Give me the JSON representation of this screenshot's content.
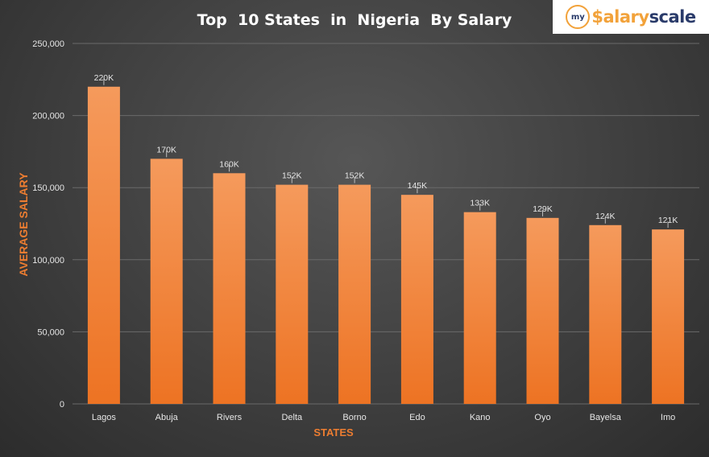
{
  "logo": {
    "mark": "my",
    "word_part1": "$alary",
    "word_part2": "scale"
  },
  "colors": {
    "bar_top": "#f59a5c",
    "bar_bottom": "#ed7323",
    "axis_label": "#ed7d31",
    "text": "#e6e6e6",
    "title": "#ffffff",
    "grid": "#6a6a6a"
  },
  "chart_data": {
    "type": "bar",
    "title": "Top  10 States  in  Nigeria  By Salary",
    "xlabel": "STATES",
    "ylabel": "AVERAGE SALARY",
    "categories": [
      "Lagos",
      "Abuja",
      "Rivers",
      "Delta",
      "Borno",
      "Edo",
      "Kano",
      "Oyo",
      "Bayelsa",
      "Imo"
    ],
    "values": [
      220000,
      170000,
      160000,
      152000,
      152000,
      145000,
      133000,
      129000,
      124000,
      121000
    ],
    "data_labels": [
      "220K",
      "170K",
      "160K",
      "152K",
      "152K",
      "145K",
      "133K",
      "129K",
      "124K",
      "121K"
    ],
    "ylim": [
      0,
      250000
    ],
    "yticks": [
      0,
      50000,
      100000,
      150000,
      200000,
      250000
    ],
    "ytick_labels": [
      "0",
      "50,000",
      "100,000",
      "150,000",
      "200,000",
      "250,000"
    ],
    "grid": true,
    "legend": "none"
  }
}
